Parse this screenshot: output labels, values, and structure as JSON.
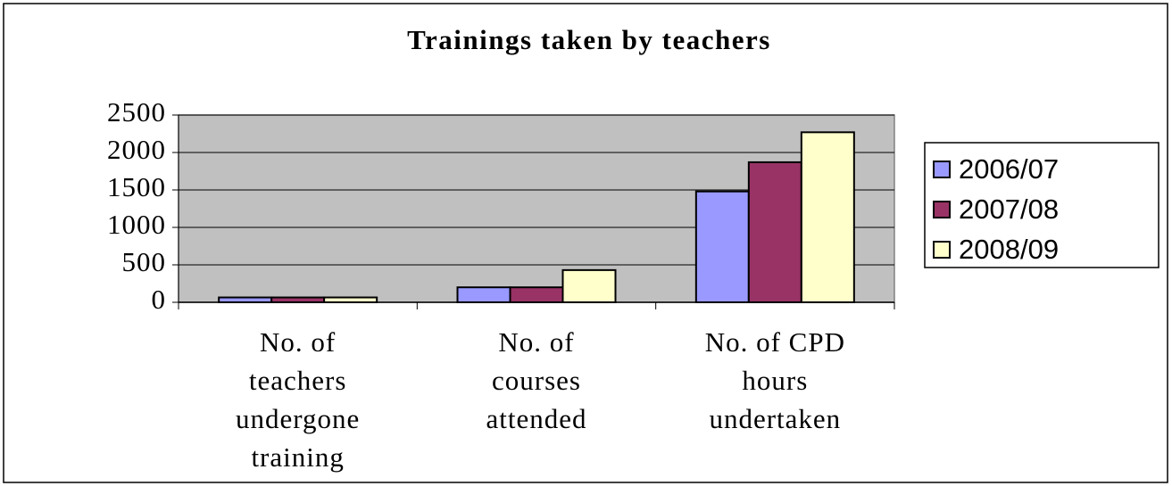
{
  "chart_data": {
    "type": "bar",
    "title": "Trainings taken by teachers",
    "categories": [
      "No. of teachers undergone training",
      "No. of courses attended",
      "No. of CPD hours undertaken"
    ],
    "series": [
      {
        "name": "2006/07",
        "color": "#9999ff",
        "values": [
          65,
          200,
          1480
        ]
      },
      {
        "name": "2007/08",
        "color": "#993366",
        "values": [
          65,
          200,
          1870
        ]
      },
      {
        "name": "2008/09",
        "color": "#ffffcc",
        "values": [
          65,
          430,
          2270
        ]
      }
    ],
    "ylim": [
      0,
      2500
    ],
    "yticks": [
      0,
      500,
      1000,
      1500,
      2000,
      2500
    ],
    "grid": true,
    "legend": "right"
  }
}
